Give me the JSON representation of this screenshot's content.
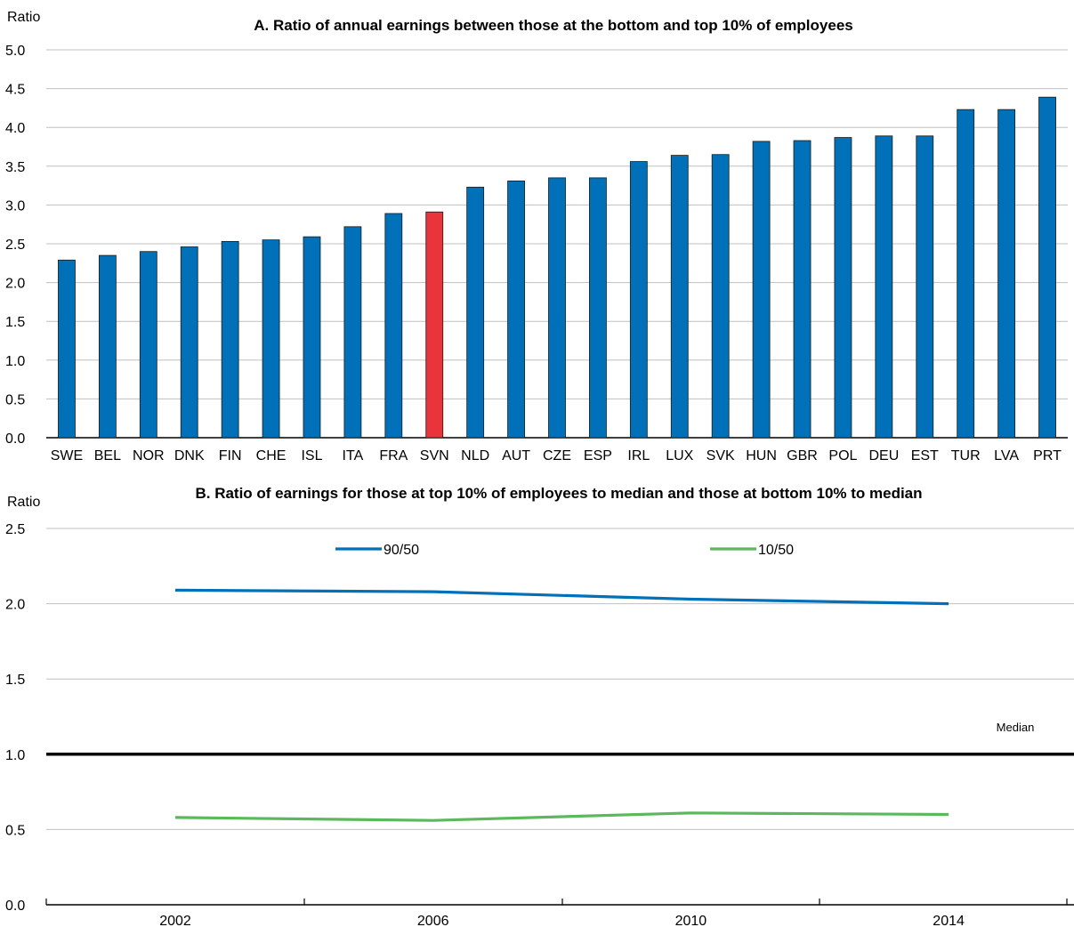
{
  "chart_data": [
    {
      "type": "bar",
      "title": "A. Ratio of annual earnings between those at the bottom and top 10% of employees",
      "ylabel": "Ratio",
      "ylim": [
        0,
        5
      ],
      "yticks": [
        "0.0",
        "0.5",
        "1.0",
        "1.5",
        "2.0",
        "2.5",
        "3.0",
        "3.5",
        "4.0",
        "4.5",
        "5.0"
      ],
      "grid": true,
      "categories": [
        "SWE",
        "BEL",
        "NOR",
        "DNK",
        "FIN",
        "CHE",
        "ISL",
        "ITA",
        "FRA",
        "SVN",
        "NLD",
        "AUT",
        "CZE",
        "ESP",
        "IRL",
        "LUX",
        "SVK",
        "HUN",
        "GBR",
        "POL",
        "DEU",
        "EST",
        "TUR",
        "LVA",
        "PRT"
      ],
      "values": [
        2.29,
        2.35,
        2.4,
        2.46,
        2.53,
        2.55,
        2.59,
        2.72,
        2.89,
        2.91,
        3.23,
        3.31,
        3.35,
        3.35,
        3.56,
        3.64,
        3.65,
        3.82,
        3.83,
        3.87,
        3.89,
        3.89,
        4.23,
        4.23,
        4.39
      ],
      "highlight": "SVN",
      "colors": {
        "bar": "#0070b8",
        "highlight": "#e8343a",
        "grid": "#c0c0c0"
      }
    },
    {
      "type": "line",
      "title": "B. Ratio of earnings for those at top 10% of employees to median and those at bottom 10% to median",
      "ylabel": "Ratio",
      "ylim": [
        0,
        2.5
      ],
      "yticks": [
        "0.0",
        "0.5",
        "1.0",
        "1.5",
        "2.0",
        "2.5"
      ],
      "grid": true,
      "legend_placement": "top",
      "x": [
        2002,
        2006,
        2010,
        2014
      ],
      "xticks": [
        "2002",
        "2006",
        "2010",
        "2014"
      ],
      "series": [
        {
          "name": "90/50",
          "color": "#0070b8",
          "values": [
            2.09,
            2.08,
            2.03,
            2.0
          ]
        },
        {
          "name": "10/50",
          "color": "#5cb85c",
          "values": [
            0.58,
            0.56,
            0.61,
            0.6
          ]
        }
      ],
      "reference_line": {
        "y": 1.0,
        "label": "Median",
        "color": "#000000"
      }
    }
  ]
}
